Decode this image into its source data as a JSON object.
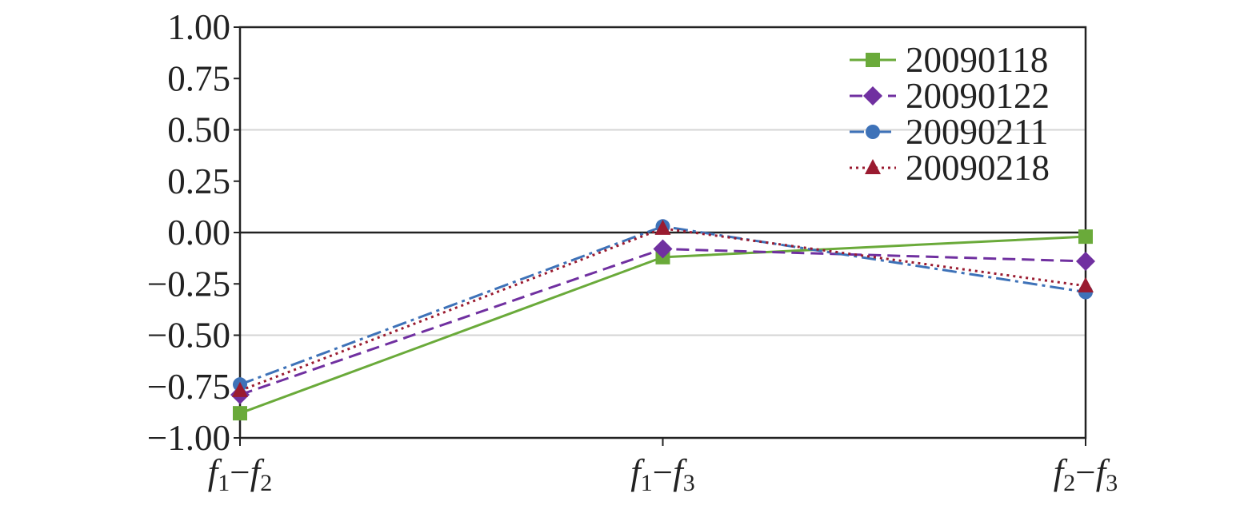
{
  "chart_data": {
    "type": "line",
    "categories": [
      {
        "a": "f",
        "a_sub": "1",
        "dash": "−",
        "b": "f",
        "b_sub": "2"
      },
      {
        "a": "f",
        "a_sub": "1",
        "dash": "−",
        "b": "f",
        "b_sub": "3"
      },
      {
        "a": "f",
        "a_sub": "2",
        "dash": "−",
        "b": "f",
        "b_sub": "3"
      }
    ],
    "ylim": [
      -1.0,
      1.0
    ],
    "yticks": [
      1.0,
      0.75,
      0.5,
      0.25,
      0.0,
      -0.25,
      -0.5,
      -0.75,
      -1.0
    ],
    "ytick_labels": [
      "1.00",
      "0.75",
      "0.50",
      "0.25",
      "0.00",
      "−0.25",
      "−0.50",
      "−0.75",
      "−1.00"
    ],
    "gridlines": [
      0.5,
      -0.5
    ],
    "legend_position": "top-right",
    "series": [
      {
        "name": "20090118",
        "values": [
          -0.88,
          -0.12,
          -0.02
        ],
        "color": "#6aaa3a",
        "marker": "square",
        "dash": "solid"
      },
      {
        "name": "20090122",
        "values": [
          -0.79,
          -0.08,
          -0.14
        ],
        "color": "#7030a0",
        "marker": "diamond",
        "dash": "dashed"
      },
      {
        "name": "20090211",
        "values": [
          -0.74,
          0.03,
          -0.29
        ],
        "color": "#3e72b8",
        "marker": "circle",
        "dash": "dash-dot"
      },
      {
        "name": "20090218",
        "values": [
          -0.77,
          0.02,
          -0.26
        ],
        "color": "#9a1b30",
        "marker": "triangle",
        "dash": "dotted"
      }
    ]
  }
}
